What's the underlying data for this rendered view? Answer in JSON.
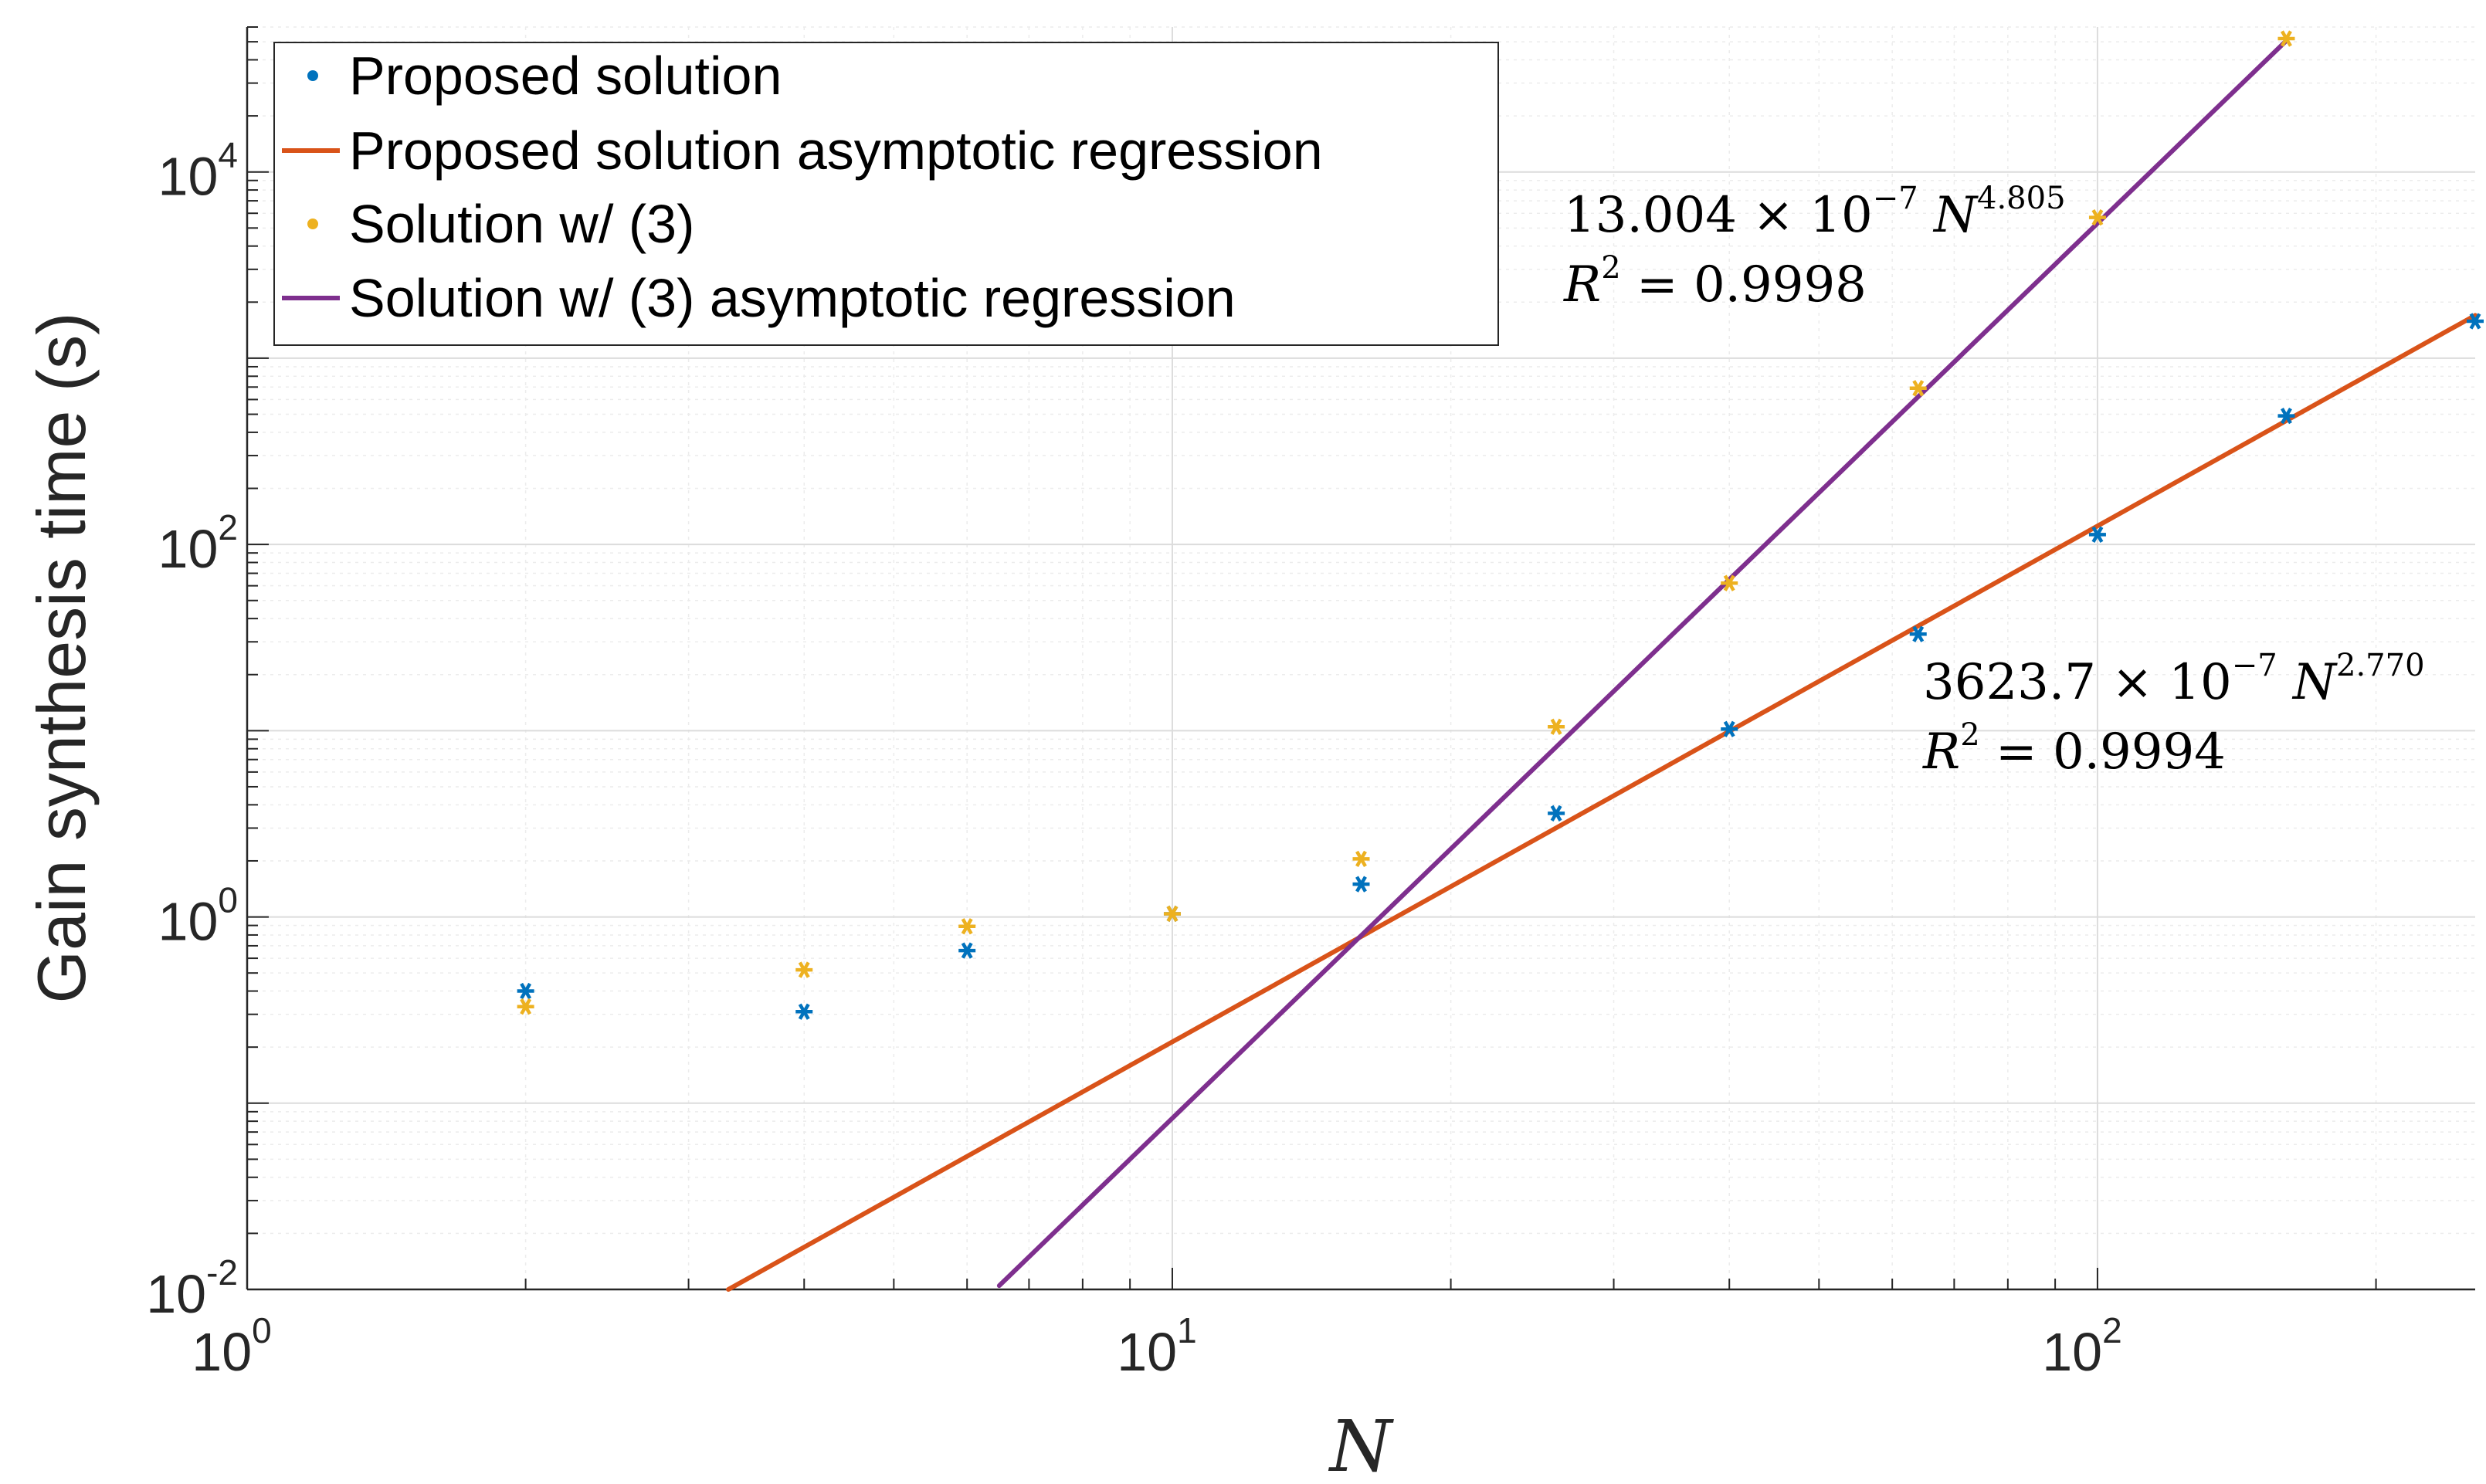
{
  "chart_data": {
    "type": "scatter",
    "title": "",
    "xlabel": "N",
    "ylabel": "Gain synthesis time (s)",
    "xscale": "log",
    "yscale": "log",
    "xlim": [
      1,
      256
    ],
    "ylim": [
      0.01,
      60000
    ],
    "grid": true,
    "legend_position": "top-left",
    "x_ticks": [
      {
        "base": "10",
        "exp": "0",
        "value": 1
      },
      {
        "base": "10",
        "exp": "1",
        "value": 10
      },
      {
        "base": "10",
        "exp": "2",
        "value": 100
      }
    ],
    "y_ticks": [
      {
        "base": "10",
        "exp": "-2",
        "value": 0.01
      },
      {
        "base": "10",
        "exp": "0",
        "value": 1
      },
      {
        "base": "10",
        "exp": "2",
        "value": 100
      },
      {
        "base": "10",
        "exp": "4",
        "value": 10000
      }
    ],
    "series": [
      {
        "name": "Proposed solution",
        "kind": "points",
        "color": "#0072BD",
        "x": [
          2,
          4,
          6,
          10,
          16,
          26,
          40,
          64,
          100,
          160,
          256
        ],
        "y": [
          0.4,
          0.31,
          0.66,
          1.04,
          1.5,
          3.6,
          10.2,
          33,
          113,
          490,
          1580
        ]
      },
      {
        "name": "Proposed solution asymptotic regression",
        "kind": "line",
        "color": "#D95319",
        "coef": 0.00036237,
        "exponent": 2.77,
        "x_range": [
          3.3,
          256
        ]
      },
      {
        "name": "Solution w/ (3)",
        "kind": "points",
        "color": "#EDB120",
        "x": [
          2,
          4,
          6,
          10,
          16,
          26,
          40,
          64,
          100,
          160
        ],
        "y": [
          0.33,
          0.52,
          0.89,
          1.04,
          2.05,
          10.5,
          62,
          690,
          5700,
          52000
        ]
      },
      {
        "name": "Solution w/ (3) asymptotic regression",
        "kind": "line",
        "color": "#7E2F8E",
        "coef": 1.3004e-06,
        "exponent": 4.805,
        "x_range": [
          6.5,
          160
        ]
      }
    ],
    "annotations": [
      {
        "name": "purple-fit-annotation",
        "coef_text": "13.004 × 10",
        "coef_exp": "−7",
        "var_text": " N",
        "var_exp": "4.805",
        "r2_prefix": "R",
        "r2_exp": "2",
        "r2_text": " = 0.9998"
      },
      {
        "name": "orange-fit-annotation",
        "coef_text": "3623.7 × 10",
        "coef_exp": "−7",
        "var_text": " N",
        "var_exp": "2.770",
        "r2_prefix": "R",
        "r2_exp": "2",
        "r2_text": " = 0.9994"
      }
    ]
  }
}
